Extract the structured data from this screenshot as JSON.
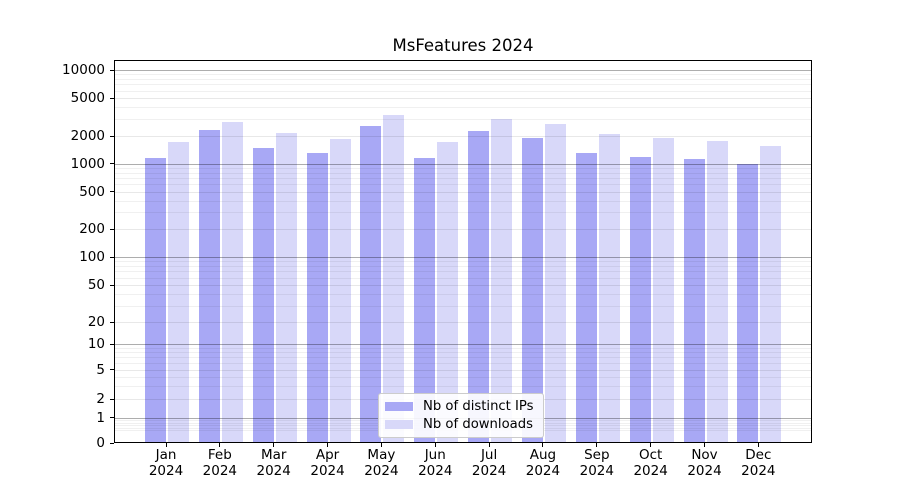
{
  "title": "MsFeatures 2024",
  "chart_data": {
    "type": "bar",
    "title": "MsFeatures 2024",
    "categories": [
      {
        "month": "Jan",
        "year": "2024"
      },
      {
        "month": "Feb",
        "year": "2024"
      },
      {
        "month": "Mar",
        "year": "2024"
      },
      {
        "month": "Apr",
        "year": "2024"
      },
      {
        "month": "May",
        "year": "2024"
      },
      {
        "month": "Jun",
        "year": "2024"
      },
      {
        "month": "Jul",
        "year": "2024"
      },
      {
        "month": "Aug",
        "year": "2024"
      },
      {
        "month": "Sep",
        "year": "2024"
      },
      {
        "month": "Oct",
        "year": "2024"
      },
      {
        "month": "Nov",
        "year": "2024"
      },
      {
        "month": "Dec",
        "year": "2024"
      }
    ],
    "series": [
      {
        "key": "ips",
        "name": "Nb of distinct IPs",
        "color": "#a8a8f5",
        "values": [
          1130,
          2250,
          1430,
          1260,
          2480,
          1110,
          2210,
          1870,
          1280,
          1160,
          1090,
          960
        ]
      },
      {
        "key": "downloads",
        "name": "Nb of downloads",
        "color": "#d8d8f9",
        "values": [
          1690,
          2750,
          2100,
          1830,
          3220,
          1690,
          2920,
          2620,
          2050,
          1870,
          1730,
          1500
        ]
      }
    ],
    "yscale": "symlog",
    "yticks": [
      0,
      1,
      2,
      5,
      10,
      20,
      50,
      100,
      200,
      500,
      1000,
      2000,
      5000,
      10000
    ],
    "ylim": [
      0,
      12800
    ],
    "xlabel": "",
    "ylabel": "",
    "grid": "on",
    "legend_position": "lower center"
  }
}
